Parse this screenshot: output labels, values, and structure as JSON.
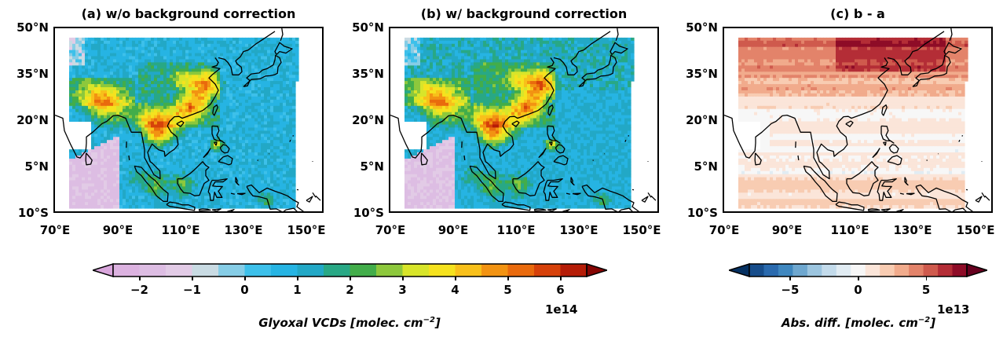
{
  "panels": [
    {
      "title": "(a) w/o background correction",
      "fill": "vcd",
      "fill_note": "Glyoxal VCDs, blue background with yellow/red hotspots over eastern China, Indochina, Philippines"
    },
    {
      "title": "(b) w/ background correction",
      "fill": "vcd",
      "fill_note": "Glyoxal VCDs after correction"
    },
    {
      "title": "(c) b - a",
      "fill": "diff",
      "fill_note": "Positive differences, strongest in northern latitudes"
    }
  ],
  "axes": {
    "lat_labels": [
      "50°N",
      "35°N",
      "20°N",
      "5°N",
      "10°S"
    ],
    "lon_labels": [
      "70°E",
      "90°E",
      "110°E",
      "130°E",
      "150°E"
    ],
    "lat_range": [
      -10,
      50
    ],
    "lon_range": [
      70,
      156
    ]
  },
  "colorbars": [
    {
      "name": "vcd",
      "ticks": [
        "−2",
        "−1",
        "0",
        "1",
        "2",
        "3",
        "4",
        "5",
        "6"
      ],
      "multiplier": "1e14",
      "label_main": "Glyoxal VCDs [molec. cm",
      "label_sup": "−2",
      "label_end": "]",
      "range": [
        -2.5,
        6.5
      ],
      "colors": [
        "#d9a6dc",
        "#dcb2e0",
        "#ddbde3",
        "#e2cbe6",
        "#c9dbe3",
        "#86cde6",
        "#3dc0ea",
        "#26b4e3",
        "#22a8c6",
        "#28a885",
        "#42ad4a",
        "#8dc83c",
        "#d8e52a",
        "#f5e21e",
        "#f8c01a",
        "#f29312",
        "#e96a0d",
        "#d6410a",
        "#b51c07",
        "#860503"
      ]
    },
    {
      "name": "diff",
      "ticks": [
        "−5",
        "0",
        "5"
      ],
      "multiplier": "1e13",
      "label_main": "Abs. diff. [molec. cm",
      "label_sup": "−2",
      "label_end": "]",
      "range": [
        -8,
        8
      ],
      "colors": [
        "#053061",
        "#174d8b",
        "#2a6aae",
        "#3f87bf",
        "#6ea7cf",
        "#9cc5df",
        "#c3dbeb",
        "#e1ecf3",
        "#f7f7f7",
        "#fbe5d9",
        "#f8ccb2",
        "#f1ab8c",
        "#e3836a",
        "#cf5a4d",
        "#b42d36",
        "#8e0c27",
        "#67001f"
      ]
    }
  ]
}
